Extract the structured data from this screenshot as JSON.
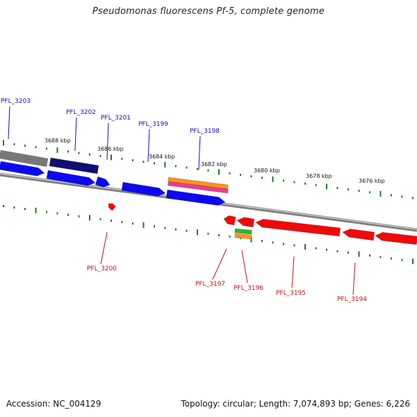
{
  "title": "Pseudomonas fluorescens Pf-5, complete genome",
  "footer": {
    "accession": "Accession: NC_004129",
    "summary": "Topology: circular; Length: 7,074,893 bp; Genes: 6,226"
  },
  "colors": {
    "forward_cds": "#0a0aee",
    "forward_cds_dark": "#101070",
    "reverse_cds": "#ee0a0a",
    "gray_feature": "#777777",
    "tick": "#1a7a1a",
    "backbone": "#888888",
    "forward_label": "#1010c0",
    "reverse_label": "#c01010",
    "orange_feature": "#f7941d",
    "pink_feature": "#ec3d8b",
    "green_feature": "#34b233"
  },
  "kbp_labels": [
    "3688 kbp",
    "3686 kbp",
    "3684 kbp",
    "3682 kbp",
    "3680 kbp",
    "3678 kbp",
    "3676 kbp"
  ],
  "forward_genes": [
    "PFL_3203",
    "PFL_3202",
    "PFL_3201",
    "PFL_3199",
    "PFL_3198"
  ],
  "reverse_genes": [
    "PFL_3200",
    "PFL_3197",
    "PFL_3196",
    "PFL_3195",
    "PFL_3194"
  ]
}
